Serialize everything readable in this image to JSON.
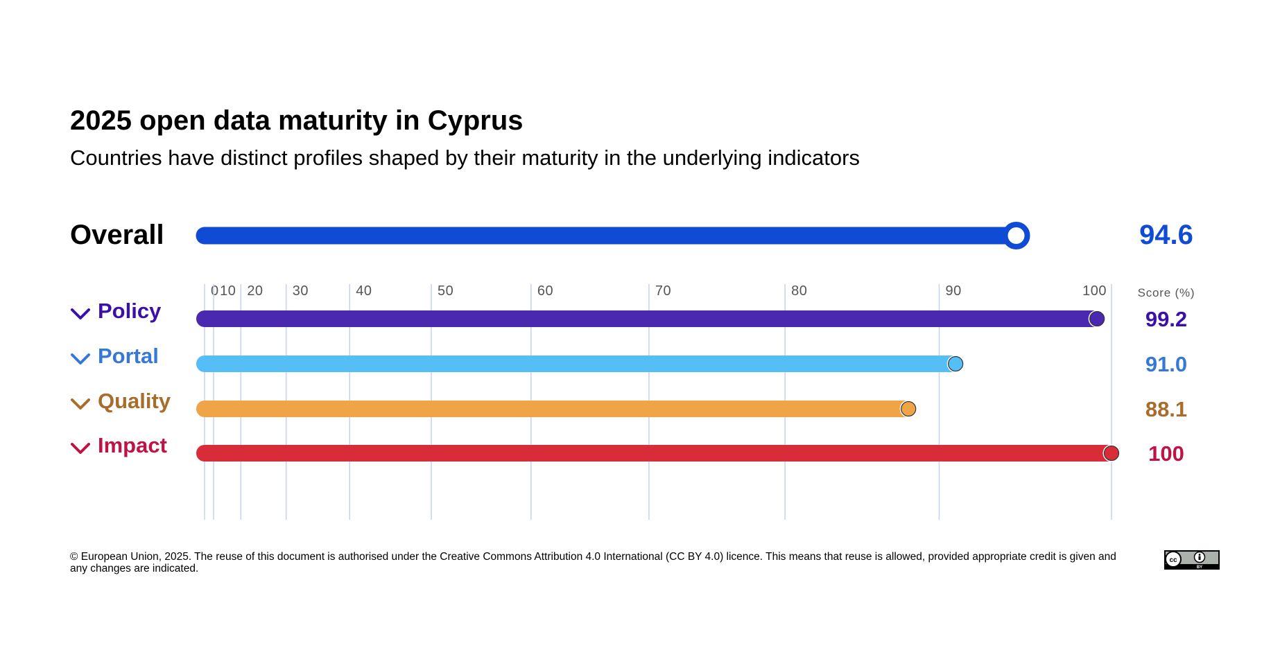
{
  "title": "2025 open data maturity in Cyprus",
  "subtitle": "Countries have distinct profiles shaped by their maturity in the underlying indicators",
  "footer": {
    "text": "© European Union, 2025. The reuse of this document is authorised under the Creative Commons Attribution 4.0 International (CC BY 4.0) licence. This means that reuse is allowed, provided appropriate credit is given and any changes are indicated.",
    "badge_text": "BY"
  },
  "chart_data": {
    "type": "bar",
    "overall": {
      "label": "Overall",
      "value": 94.6,
      "value_text": "94.6",
      "color": "#0f4bd4"
    },
    "x_ticks": [
      0,
      10,
      20,
      30,
      40,
      50,
      60,
      70,
      80,
      90,
      100
    ],
    "xlim": [
      0,
      100
    ],
    "x_scale": "power",
    "score_header": "Score (%)",
    "categories": [
      "Policy",
      "Portal",
      "Quality",
      "Impact"
    ],
    "series": [
      {
        "values": [
          99.2,
          91.0,
          88.1,
          100
        ],
        "value_texts": [
          "99.2",
          "91.0",
          "88.1",
          "100"
        ]
      }
    ],
    "bar_colors": [
      "#4b28b0",
      "#56bef6",
      "#efa448",
      "#d82d38"
    ],
    "label_colors": [
      "#3a10a8",
      "#3778d6",
      "#a86d2a",
      "#c01244"
    ],
    "gridline_color": "#c5d2ee",
    "tick_label_color": "#555555"
  }
}
